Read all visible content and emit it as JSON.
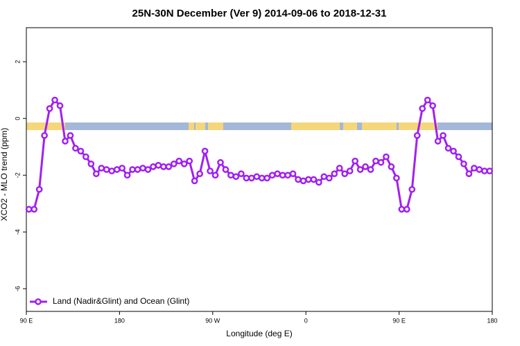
{
  "chart_data": {
    "type": "line",
    "title": "25N-30N December (Ver 9)   2014-09-06 to 2018-12-31",
    "xlabel": "Longitude (deg E)",
    "ylabel": "XCO2 - MLO trend (ppm)",
    "xlim": [
      90,
      540
    ],
    "ylim": [
      -6.8,
      3.2
    ],
    "xticks": [
      {
        "value": 90,
        "label": "90 E"
      },
      180,
      {
        "value": 270,
        "label": "90 W"
      },
      {
        "value": 360,
        "label": "0"
      },
      {
        "value": 450,
        "label": "90 E"
      },
      {
        "value": 540,
        "label": "180"
      }
    ],
    "yticks": [
      2,
      0,
      -2,
      -4,
      -6
    ],
    "legend": "bottomleft",
    "x": [
      92.5,
      97.5,
      102.5,
      107.5,
      112.5,
      117.5,
      122.5,
      127.5,
      132.5,
      137.5,
      142.5,
      147.5,
      152.5,
      157.5,
      162.5,
      167.5,
      172.5,
      177.5,
      182.5,
      187.5,
      192.5,
      197.5,
      202.5,
      207.5,
      212.5,
      217.5,
      222.5,
      227.5,
      232.5,
      237.5,
      242.5,
      247.5,
      252.5,
      257.5,
      262.5,
      267.5,
      272.5,
      277.5,
      282.5,
      287.5,
      292.5,
      297.5,
      302.5,
      307.5,
      312.5,
      317.5,
      322.5,
      327.5,
      332.5,
      337.5,
      342.5,
      347.5,
      352.5,
      357.5,
      362.5,
      367.5,
      372.5,
      377.5,
      382.5,
      387.5,
      392.5,
      397.5,
      402.5,
      407.5,
      412.5,
      417.5,
      422.5,
      427.5,
      432.5,
      437.5,
      442.5,
      447.5,
      452.5,
      457.5,
      462.5,
      467.5,
      472.5,
      477.5,
      482.5,
      487.5,
      492.5,
      497.5,
      502.5,
      507.5,
      512.5,
      517.5,
      522.5,
      527.5,
      532.5,
      537.5
    ],
    "series": [
      {
        "name": "Land (Nadir&Glint) and Ocean (Glint)",
        "color": "#a020f0",
        "values": [
          -3.2,
          -3.2,
          -2.5,
          -0.6,
          0.35,
          0.65,
          0.45,
          -0.8,
          -0.6,
          -1.05,
          -1.15,
          -1.35,
          -1.6,
          -1.95,
          -1.75,
          -1.8,
          -1.85,
          -1.8,
          -1.75,
          -2.0,
          -1.8,
          -1.8,
          -1.75,
          -1.8,
          -1.7,
          -1.65,
          -1.7,
          -1.7,
          -1.6,
          -1.5,
          -1.6,
          -1.5,
          -2.2,
          -1.95,
          -1.15,
          -1.85,
          -2.0,
          -1.55,
          -1.8,
          -2.0,
          -2.05,
          -1.95,
          -2.1,
          -2.1,
          -2.05,
          -2.1,
          -2.1,
          -2.0,
          -1.95,
          -2.0,
          -2.0,
          -1.95,
          -2.15,
          -2.2,
          -2.15,
          -2.15,
          -2.25,
          -2.05,
          -2.1,
          -1.95,
          -1.75,
          -1.95,
          -1.85,
          -1.5,
          -1.8,
          -1.7,
          -1.8,
          -1.5,
          -1.55,
          -1.35,
          -1.7,
          -2.1,
          -3.2,
          -3.2,
          -2.5,
          -0.6,
          0.35,
          0.65,
          0.45,
          -0.8,
          -0.6,
          -1.05,
          -1.15,
          -1.35,
          -1.6,
          -1.95,
          -1.75,
          -1.8,
          -1.85,
          -1.85
        ]
      }
    ]
  }
}
